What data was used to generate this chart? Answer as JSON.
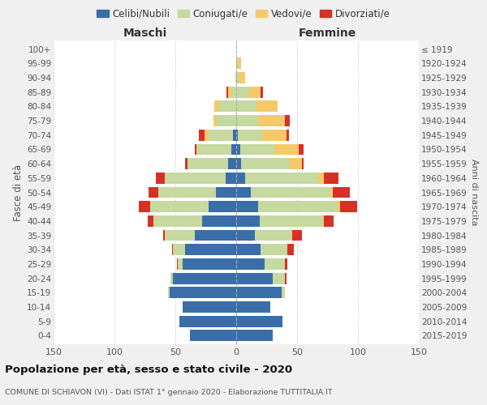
{
  "age_groups": [
    "0-4",
    "5-9",
    "10-14",
    "15-19",
    "20-24",
    "25-29",
    "30-34",
    "35-39",
    "40-44",
    "45-49",
    "50-54",
    "55-59",
    "60-64",
    "65-69",
    "70-74",
    "75-79",
    "80-84",
    "85-89",
    "90-94",
    "95-99",
    "100+"
  ],
  "birth_years": [
    "2015-2019",
    "2010-2014",
    "2005-2009",
    "2000-2004",
    "1995-1999",
    "1990-1994",
    "1985-1989",
    "1980-1984",
    "1975-1979",
    "1970-1974",
    "1965-1969",
    "1960-1964",
    "1955-1959",
    "1950-1954",
    "1945-1949",
    "1940-1944",
    "1935-1939",
    "1930-1934",
    "1925-1929",
    "1920-1924",
    "≤ 1919"
  ],
  "maschi": {
    "celibi": [
      38,
      47,
      44,
      55,
      52,
      44,
      42,
      34,
      28,
      23,
      17,
      9,
      7,
      4,
      3,
      0,
      0,
      0,
      0,
      0,
      0
    ],
    "coniugati": [
      0,
      0,
      0,
      1,
      2,
      4,
      10,
      24,
      40,
      48,
      47,
      50,
      33,
      28,
      20,
      16,
      14,
      4,
      1,
      0,
      0
    ],
    "vedovi": [
      0,
      0,
      0,
      0,
      0,
      0,
      0,
      1,
      0,
      0,
      0,
      0,
      0,
      1,
      3,
      3,
      4,
      3,
      0,
      0,
      0
    ],
    "divorziati": [
      0,
      0,
      0,
      0,
      0,
      1,
      1,
      1,
      5,
      9,
      8,
      7,
      2,
      1,
      5,
      0,
      0,
      1,
      0,
      0,
      0
    ]
  },
  "femmine": {
    "nubili": [
      30,
      38,
      28,
      37,
      30,
      23,
      20,
      15,
      19,
      18,
      12,
      7,
      4,
      3,
      1,
      0,
      0,
      0,
      0,
      0,
      0
    ],
    "coniugate": [
      0,
      0,
      0,
      3,
      10,
      17,
      22,
      30,
      52,
      65,
      65,
      60,
      40,
      28,
      20,
      18,
      16,
      10,
      2,
      1,
      0
    ],
    "vedove": [
      0,
      0,
      0,
      0,
      0,
      0,
      0,
      1,
      1,
      2,
      2,
      5,
      10,
      20,
      20,
      22,
      18,
      10,
      5,
      3,
      0
    ],
    "divorziate": [
      0,
      0,
      0,
      0,
      1,
      2,
      5,
      8,
      8,
      14,
      14,
      12,
      1,
      4,
      2,
      4,
      0,
      2,
      0,
      0,
      0
    ]
  },
  "colors": {
    "celibi": "#3b6ea8",
    "coniugati": "#c5d9a0",
    "vedovi": "#f5c96a",
    "divorziati": "#d73027"
  },
  "xlim": 150,
  "title": "Popolazione per età, sesso e stato civile - 2020",
  "subtitle": "COMUNE DI SCHIAVON (VI) - Dati ISTAT 1° gennaio 2020 - Elaborazione TUTTITALIA.IT",
  "ylabel_left": "Fasce di età",
  "ylabel_right": "Anni di nascita",
  "xlabel_left": "Maschi",
  "xlabel_right": "Femmine",
  "bg_color": "#f0f0f0",
  "plot_bg": "#ffffff"
}
